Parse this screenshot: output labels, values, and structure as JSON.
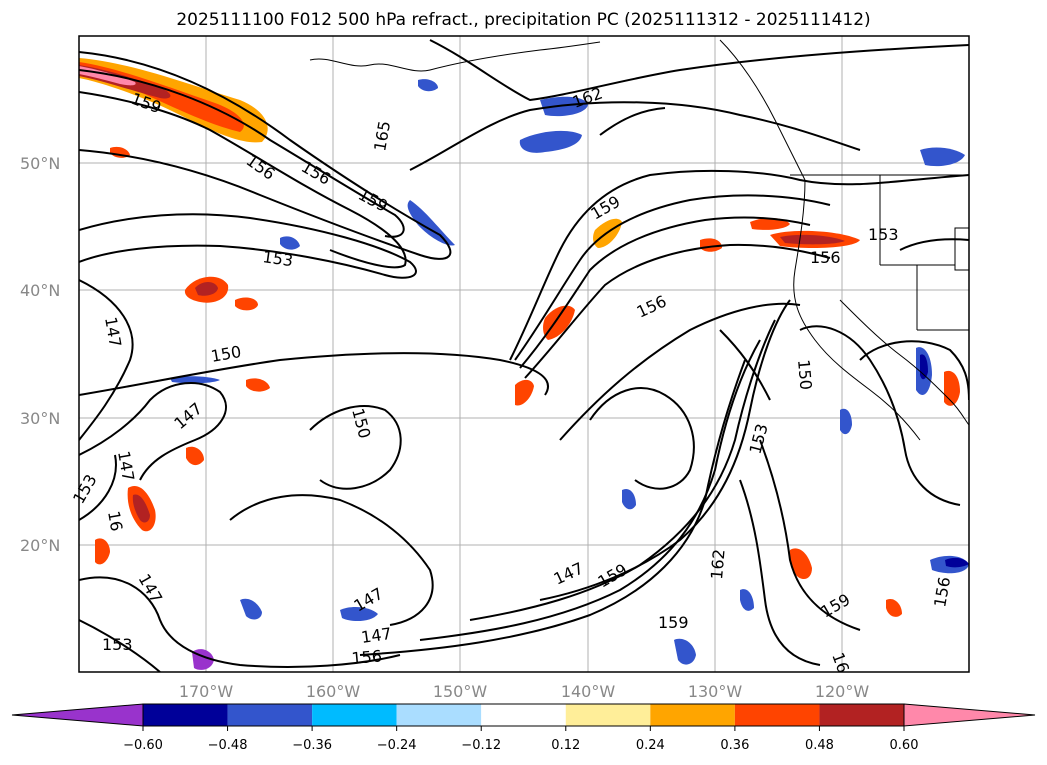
{
  "title": "2025111100 F012 500 hPa refract., precipitation PC (2025111312 - 2025111412)",
  "lat_labels": [
    "50°N",
    "40°N",
    "30°N",
    "20°N"
  ],
  "lon_labels": [
    "170°W",
    "160°W",
    "150°W",
    "140°W",
    "130°W",
    "120°W"
  ],
  "contour_labels": [
    "159",
    "156",
    "156",
    "159",
    "165",
    "162",
    "159",
    "153",
    "153",
    "156",
    "156",
    "150",
    "150",
    "147",
    "147",
    "153",
    "16",
    "147",
    "147",
    "147",
    "147",
    "159",
    "162",
    "147",
    "159",
    "156",
    "153",
    "159",
    "153",
    "150",
    "156",
    "16"
  ],
  "colorbar": {
    "ticks": [
      "−0.60",
      "−0.48",
      "−0.36",
      "−0.24",
      "−0.12",
      "0.12",
      "0.24",
      "0.36",
      "0.48",
      "0.60"
    ],
    "colors": [
      "#9933cc",
      "#000099",
      "#3355cc",
      "#00bbff",
      "#aaddff",
      "#ffffff",
      "#ffee99",
      "#ffa500",
      "#ff4400",
      "#b22222",
      "#ff88aa"
    ]
  },
  "palette": {
    "neg_strong": "#3355cc",
    "neg_light": "#00bbff",
    "pos_light": "#ffee99",
    "pos_mid": "#ffa500",
    "pos_strong": "#ff4400",
    "pos_dark": "#b22222",
    "pos_max": "#ff88aa"
  }
}
